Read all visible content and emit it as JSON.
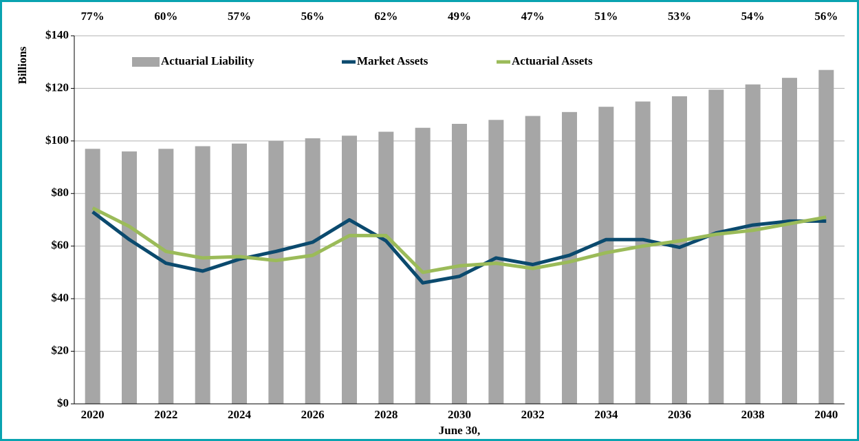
{
  "chart_data": {
    "type": "bar-line",
    "y_label": "Billions",
    "x_label": "June 30,",
    "categories": [
      "2020",
      null,
      "2022",
      null,
      "2024",
      null,
      "2026",
      null,
      "2028",
      null,
      "2030",
      null,
      "2032",
      null,
      "2034",
      null,
      "2036",
      null,
      "2038",
      null,
      "2040"
    ],
    "top_labels": [
      "77%",
      null,
      "60%",
      null,
      "57%",
      null,
      "56%",
      null,
      "62%",
      null,
      "49%",
      null,
      "47%",
      null,
      "51%",
      null,
      "53%",
      null,
      "54%",
      null,
      "56%"
    ],
    "series": [
      {
        "name": "Actuarial Liability",
        "type": "bar",
        "color": "#a6a6a6",
        "values": [
          97,
          96,
          97,
          98,
          99,
          100,
          101,
          102,
          103.5,
          105,
          106.5,
          108,
          109.5,
          111,
          113,
          115,
          117,
          119.5,
          121.5,
          124,
          127
        ]
      },
      {
        "name": "Market Assets",
        "type": "line",
        "color": "#0b4a6e",
        "values": [
          73,
          62.5,
          53.5,
          50.5,
          55,
          58,
          61.5,
          70,
          62,
          46,
          48.5,
          55.5,
          53,
          56.5,
          62.5,
          62.5,
          59.5,
          65,
          68,
          69.5,
          69.5
        ]
      },
      {
        "name": "Actuarial Assets",
        "type": "line",
        "color": "#9bbb59",
        "values": [
          74.5,
          67.5,
          58,
          55.5,
          56,
          54.5,
          56.5,
          64,
          64,
          50,
          52.5,
          53.5,
          51.5,
          54,
          57.5,
          60,
          62,
          64.5,
          66,
          68.5,
          71
        ]
      }
    ],
    "ylim": [
      0,
      140
    ],
    "yticks": [
      {
        "value": 0,
        "label": "$0"
      },
      {
        "value": 20,
        "label": "$20"
      },
      {
        "value": 40,
        "label": "$40"
      },
      {
        "value": 60,
        "label": "$60"
      },
      {
        "value": 80,
        "label": "$80"
      },
      {
        "value": 100,
        "label": "$100"
      },
      {
        "value": 120,
        "label": "$120"
      },
      {
        "value": 140,
        "label": "$140"
      }
    ],
    "grid": true
  }
}
